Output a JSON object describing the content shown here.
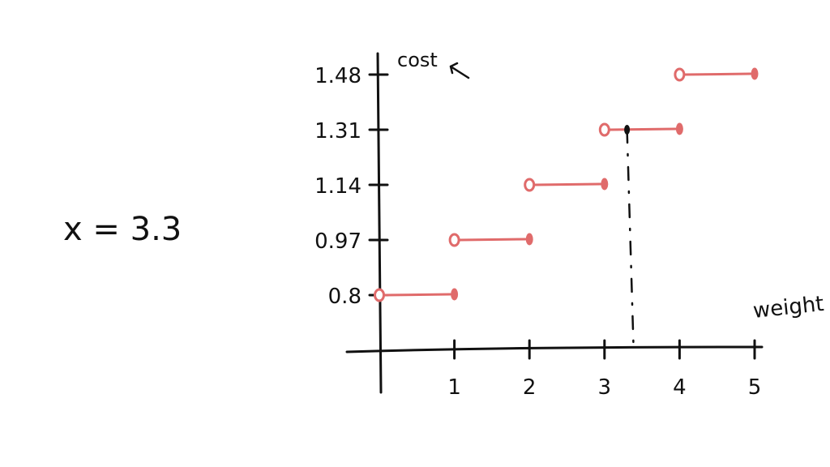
{
  "annotation": "x = 3.3",
  "colors": {
    "step": "#e06b6b",
    "ink": "#111111"
  },
  "chart_data": {
    "type": "line",
    "subtype": "step",
    "xlabel": "weight",
    "ylabel": "cost",
    "x_ticks": [
      "1",
      "2",
      "3",
      "4",
      "5"
    ],
    "y_ticks": [
      "0.8",
      "0.97",
      "1.14",
      "1.31",
      "1.48"
    ],
    "xlim": [
      0,
      5
    ],
    "ylim": [
      0,
      1.48
    ],
    "grid": false,
    "segments": [
      {
        "x_start": 0,
        "x_end": 1,
        "y": 0.8,
        "open_start": true,
        "closed_end": true
      },
      {
        "x_start": 1,
        "x_end": 2,
        "y": 0.97,
        "open_start": true,
        "closed_end": true
      },
      {
        "x_start": 2,
        "x_end": 3,
        "y": 1.14,
        "open_start": true,
        "closed_end": true
      },
      {
        "x_start": 3,
        "x_end": 4,
        "y": 1.31,
        "open_start": true,
        "closed_end": true
      },
      {
        "x_start": 4,
        "x_end": 5,
        "y": 1.48,
        "open_start": true,
        "closed_end": true
      }
    ],
    "marker": {
      "x": 3.3,
      "y": 1.31
    }
  }
}
